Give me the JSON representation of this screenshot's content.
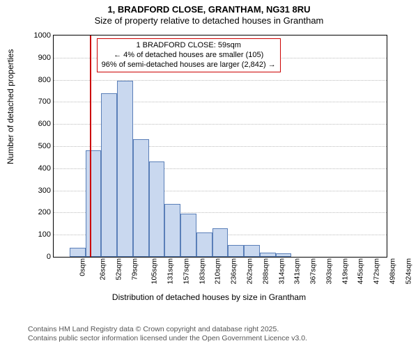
{
  "titles": {
    "line1": "1, BRADFORD CLOSE, GRANTHAM, NG31 8RU",
    "line2": "Size of property relative to detached houses in Grantham"
  },
  "axes": {
    "ylabel": "Number of detached properties",
    "xlabel": "Distribution of detached houses by size in Grantham",
    "ylim": [
      0,
      1000
    ],
    "ytick_step": 100,
    "xticks": [
      "0sqm",
      "26sqm",
      "52sqm",
      "79sqm",
      "105sqm",
      "131sqm",
      "157sqm",
      "183sqm",
      "210sqm",
      "236sqm",
      "262sqm",
      "288sqm",
      "314sqm",
      "341sqm",
      "367sqm",
      "393sqm",
      "419sqm",
      "445sqm",
      "472sqm",
      "498sqm",
      "524sqm"
    ]
  },
  "chart": {
    "type": "histogram",
    "bar_count": 21,
    "values": [
      0,
      40,
      480,
      740,
      795,
      530,
      430,
      240,
      195,
      110,
      130,
      55,
      55,
      20,
      15,
      0,
      0,
      0,
      0,
      0,
      0
    ],
    "bar_fill": "#c9d8ef",
    "bar_stroke": "#5a7fb8",
    "background": "#ffffff",
    "grid_color": "#bbbbbb",
    "border_color": "#000000"
  },
  "marker": {
    "color": "#cc0000",
    "position_sqm": 59,
    "info_lines": {
      "a": "1 BRADFORD CLOSE: 59sqm",
      "b": "← 4% of detached houses are smaller (105)",
      "c": "96% of semi-detached houses are larger (2,842) →"
    }
  },
  "footer": {
    "line1": "Contains HM Land Registry data © Crown copyright and database right 2025.",
    "line2": "Contains public sector information licensed under the Open Government Licence v3.0."
  }
}
